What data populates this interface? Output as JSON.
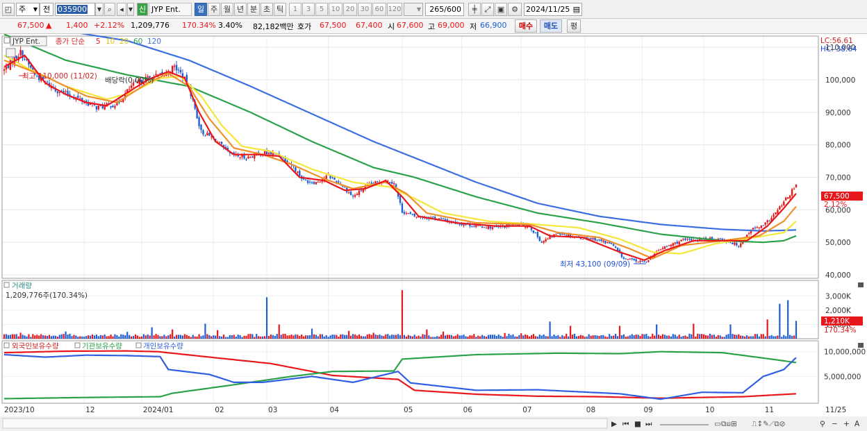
{
  "toolbar": {
    "tab_week": "주",
    "tab_prev": "전",
    "code": "035900",
    "market_badge": "신",
    "stock_name": "JYP Ent.",
    "periods": [
      "일",
      "주",
      "월",
      "년",
      "분",
      "초",
      "틱"
    ],
    "numbers": [
      "1",
      "3",
      "5",
      "10",
      "20",
      "30",
      "60",
      "120"
    ],
    "count": "265",
    "count_max": "/600",
    "date": "2024/11/25"
  },
  "quote": {
    "price": "67,500",
    "arrow": "▲",
    "change": "1,400",
    "change_pct": "+2.12%",
    "volume": "1,209,776",
    "vol_ratio": "170.34%",
    "turnover_pct": "3.40%",
    "amount": "82,182백만",
    "hoga_label": "호가",
    "hoga_ask": "67,500",
    "hoga_bid": "67,400",
    "open_label": "시",
    "open": "67,600",
    "high_label": "고",
    "high": "69,000",
    "low_label": "저",
    "low": "66,900",
    "buy": "매수",
    "sell": "매도",
    "eval": "평"
  },
  "colors": {
    "up": "#e8171b",
    "down": "#1f5fd6",
    "ma5": "#e8171b",
    "ma10": "#f0902a",
    "ma20": "#f5e63a",
    "ma60": "#2aa24a",
    "ma120": "#3b6fe0"
  },
  "chart_data": [
    {
      "type": "candlestick",
      "title": "JYP Ent.",
      "legend": {
        "prefix": "종가 단순",
        "ma": [
          "5",
          "10",
          "20",
          "60",
          "120"
        ]
      },
      "x_ticks": [
        "2023/10",
        "12",
        "2024/01",
        "02",
        "03",
        "04",
        "05",
        "06",
        "07",
        "08",
        "09",
        "10",
        "11",
        "11/25"
      ],
      "y_ticks": [
        "110,000",
        "100,000",
        "90,000",
        "80,000",
        "70,000",
        "60,000",
        "50,000",
        "40,000"
      ],
      "ylim": [
        40000,
        113000
      ],
      "lc": "LC:56.61",
      "hc": "HC:-38.64",
      "annotations": {
        "high": "최고 110,000 (11/02)",
        "low": "최저 43,100 (09/09)",
        "dividend": "배당락(0.00%)"
      },
      "last_price": "67,500",
      "last_change": "2.12%",
      "close_anchors": [
        [
          0,
          103000
        ],
        [
          8,
          108500
        ],
        [
          15,
          101500
        ],
        [
          25,
          97000
        ],
        [
          35,
          94500
        ],
        [
          45,
          91500
        ],
        [
          55,
          92500
        ],
        [
          62,
          98000
        ],
        [
          70,
          100500
        ],
        [
          78,
          101500
        ],
        [
          83,
          104000
        ],
        [
          86,
          102000
        ],
        [
          90,
          98000
        ],
        [
          96,
          84000
        ],
        [
          102,
          82000
        ],
        [
          110,
          77000
        ],
        [
          118,
          76000
        ],
        [
          126,
          77500
        ],
        [
          134,
          77000
        ],
        [
          140,
          74000
        ],
        [
          146,
          69000
        ],
        [
          152,
          68500
        ],
        [
          158,
          70500
        ],
        [
          164,
          68000
        ],
        [
          170,
          64000
        ],
        [
          176,
          67000
        ],
        [
          184,
          69000
        ],
        [
          190,
          68500
        ],
        [
          194,
          59500
        ],
        [
          200,
          58000
        ],
        [
          210,
          57500
        ],
        [
          220,
          56000
        ],
        [
          230,
          55000
        ],
        [
          240,
          54500
        ],
        [
          250,
          55500
        ],
        [
          256,
          55000
        ],
        [
          262,
          50000
        ],
        [
          270,
          53000
        ],
        [
          280,
          51500
        ],
        [
          288,
          51000
        ],
        [
          296,
          49500
        ],
        [
          302,
          45000
        ],
        [
          312,
          43800
        ],
        [
          320,
          48000
        ],
        [
          330,
          50500
        ],
        [
          340,
          51000
        ],
        [
          350,
          51000
        ],
        [
          358,
          49000
        ],
        [
          364,
          54000
        ],
        [
          370,
          55000
        ],
        [
          376,
          59000
        ],
        [
          382,
          64000
        ],
        [
          386,
          67500
        ]
      ],
      "ma_anchors": {
        "ma5": [
          [
            0,
            104000
          ],
          [
            10,
            107500
          ],
          [
            20,
            99000
          ],
          [
            30,
            95500
          ],
          [
            40,
            93000
          ],
          [
            50,
            92000
          ],
          [
            60,
            96000
          ],
          [
            70,
            100000
          ],
          [
            80,
            102500
          ],
          [
            88,
            100500
          ],
          [
            95,
            90000
          ],
          [
            103,
            81000
          ],
          [
            112,
            77000
          ],
          [
            124,
            77000
          ],
          [
            134,
            76500
          ],
          [
            144,
            70000
          ],
          [
            156,
            69000
          ],
          [
            166,
            66000
          ],
          [
            176,
            66500
          ],
          [
            186,
            69000
          ],
          [
            194,
            64000
          ],
          [
            202,
            58000
          ],
          [
            220,
            56000
          ],
          [
            240,
            55000
          ],
          [
            256,
            55000
          ],
          [
            266,
            52000
          ],
          [
            282,
            51500
          ],
          [
            300,
            47000
          ],
          [
            312,
            44500
          ],
          [
            322,
            47500
          ],
          [
            336,
            50500
          ],
          [
            352,
            50500
          ],
          [
            362,
            50500
          ],
          [
            372,
            55000
          ],
          [
            380,
            60500
          ],
          [
            386,
            65000
          ]
        ],
        "ma10": [
          [
            0,
            106000
          ],
          [
            20,
            101000
          ],
          [
            40,
            95000
          ],
          [
            55,
            93000
          ],
          [
            70,
            99000
          ],
          [
            80,
            102000
          ],
          [
            90,
            98000
          ],
          [
            100,
            88000
          ],
          [
            112,
            79000
          ],
          [
            126,
            77000
          ],
          [
            140,
            74000
          ],
          [
            156,
            69500
          ],
          [
            170,
            66500
          ],
          [
            186,
            68500
          ],
          [
            196,
            65000
          ],
          [
            206,
            59000
          ],
          [
            230,
            56000
          ],
          [
            256,
            55500
          ],
          [
            270,
            53000
          ],
          [
            290,
            51500
          ],
          [
            305,
            48000
          ],
          [
            316,
            45000
          ],
          [
            330,
            49000
          ],
          [
            350,
            50500
          ],
          [
            368,
            52000
          ],
          [
            380,
            56500
          ],
          [
            386,
            61000
          ]
        ],
        "ma20": [
          [
            0,
            107500
          ],
          [
            10,
            104000
          ],
          [
            30,
            98000
          ],
          [
            50,
            94000
          ],
          [
            62,
            96000
          ],
          [
            76,
            100500
          ],
          [
            86,
            101000
          ],
          [
            96,
            95000
          ],
          [
            106,
            86000
          ],
          [
            116,
            79500
          ],
          [
            130,
            78000
          ],
          [
            150,
            72500
          ],
          [
            170,
            68500
          ],
          [
            188,
            67000
          ],
          [
            200,
            63500
          ],
          [
            214,
            59000
          ],
          [
            236,
            56500
          ],
          [
            260,
            55500
          ],
          [
            280,
            54500
          ],
          [
            300,
            51000
          ],
          [
            316,
            47000
          ],
          [
            330,
            46500
          ],
          [
            346,
            49500
          ],
          [
            366,
            51500
          ],
          [
            380,
            53000
          ],
          [
            386,
            56500
          ]
        ],
        "ma60": [
          [
            0,
            114000
          ],
          [
            30,
            106000
          ],
          [
            60,
            101500
          ],
          [
            90,
            98000
          ],
          [
            120,
            90000
          ],
          [
            150,
            81000
          ],
          [
            180,
            73000
          ],
          [
            200,
            70000
          ],
          [
            230,
            64000
          ],
          [
            260,
            59000
          ],
          [
            290,
            56000
          ],
          [
            320,
            52500
          ],
          [
            350,
            50500
          ],
          [
            370,
            50000
          ],
          [
            380,
            50500
          ],
          [
            386,
            52000
          ]
        ],
        "ma120": [
          [
            0,
            117000
          ],
          [
            30,
            115000
          ],
          [
            60,
            112000
          ],
          [
            90,
            106000
          ],
          [
            120,
            98000
          ],
          [
            150,
            89500
          ],
          [
            180,
            81000
          ],
          [
            200,
            76000
          ],
          [
            230,
            68500
          ],
          [
            260,
            62000
          ],
          [
            290,
            58000
          ],
          [
            320,
            55500
          ],
          [
            350,
            54000
          ],
          [
            370,
            53500
          ],
          [
            386,
            53800
          ]
        ]
      }
    },
    {
      "type": "bar",
      "title": "거래량",
      "info": "1,209,776주(170.34%)",
      "y_ticks": [
        "3,000K",
        "2,000K",
        "1,000K"
      ],
      "ylim": [
        0,
        3600
      ],
      "last_value": "1,210K",
      "last_ratio": "170.34%",
      "spikes_k": [
        [
          8,
          420
        ],
        [
          30,
          500
        ],
        [
          60,
          480
        ],
        [
          72,
          800
        ],
        [
          82,
          650
        ],
        [
          98,
          1050
        ],
        [
          104,
          600
        ],
        [
          128,
          2900
        ],
        [
          134,
          1000
        ],
        [
          150,
          700
        ],
        [
          168,
          550
        ],
        [
          180,
          420
        ],
        [
          194,
          3400
        ],
        [
          206,
          650
        ],
        [
          214,
          500
        ],
        [
          244,
          400
        ],
        [
          252,
          380
        ],
        [
          266,
          1200
        ],
        [
          276,
          900
        ],
        [
          300,
          900
        ],
        [
          318,
          1000
        ],
        [
          336,
          1050
        ],
        [
          354,
          1000
        ],
        [
          372,
          1350
        ],
        [
          378,
          2450
        ],
        [
          382,
          2700
        ],
        [
          386,
          1250
        ]
      ]
    },
    {
      "type": "line",
      "title": "외국인보유수량",
      "legend": [
        "외국인보유수량",
        "기관보유수량",
        "개인보유수량"
      ],
      "y_ticks": [
        "10,000,000",
        "5,000,000"
      ],
      "ylim": [
        0,
        11500000
      ],
      "series": [
        {
          "name": "외국인보유수량",
          "color": "#e8171b",
          "anchors": [
            [
              0,
              9800000
            ],
            [
              30,
              10100000
            ],
            [
              60,
              10150000
            ],
            [
              75,
              10000000
            ],
            [
              100,
              8900000
            ],
            [
              130,
              7600000
            ],
            [
              160,
              5200000
            ],
            [
              180,
              4700000
            ],
            [
              192,
              4400000
            ],
            [
              200,
              2200000
            ],
            [
              230,
              1400000
            ],
            [
              260,
              1000000
            ],
            [
              290,
              900000
            ],
            [
              320,
              600000
            ],
            [
              360,
              900000
            ],
            [
              386,
              1500000
            ]
          ]
        },
        {
          "name": "기관보유수량",
          "color": "#2aa24a",
          "anchors": [
            [
              0,
              500000
            ],
            [
              40,
              750000
            ],
            [
              76,
              900000
            ],
            [
              82,
              1600000
            ],
            [
              110,
              3200000
            ],
            [
              140,
              5000000
            ],
            [
              160,
              6000000
            ],
            [
              190,
              6100000
            ],
            [
              194,
              8500000
            ],
            [
              230,
              9400000
            ],
            [
              270,
              9700000
            ],
            [
              300,
              9600000
            ],
            [
              320,
              10000000
            ],
            [
              350,
              9800000
            ],
            [
              372,
              8600000
            ],
            [
              386,
              7800000
            ]
          ]
        },
        {
          "name": "개인보유수량",
          "color": "#2f5fe0",
          "anchors": [
            [
              0,
              9400000
            ],
            [
              20,
              8900000
            ],
            [
              40,
              9300000
            ],
            [
              60,
              9200000
            ],
            [
              76,
              9000000
            ],
            [
              80,
              6400000
            ],
            [
              100,
              5400000
            ],
            [
              112,
              3800000
            ],
            [
              126,
              3800000
            ],
            [
              150,
              5000000
            ],
            [
              170,
              3800000
            ],
            [
              192,
              6000000
            ],
            [
              198,
              3700000
            ],
            [
              230,
              2200000
            ],
            [
              260,
              2300000
            ],
            [
              300,
              1500000
            ],
            [
              320,
              400000
            ],
            [
              340,
              1800000
            ],
            [
              360,
              1700000
            ],
            [
              370,
              5000000
            ],
            [
              380,
              6400000
            ],
            [
              386,
              8800000
            ]
          ]
        }
      ]
    }
  ],
  "bottom_icons": [
    "scroll-right-icon",
    "rewind-icon",
    "stop-icon",
    "forward-icon",
    "zoom-out-icon",
    "minus-icon",
    "plus-icon",
    "auto-icon"
  ]
}
